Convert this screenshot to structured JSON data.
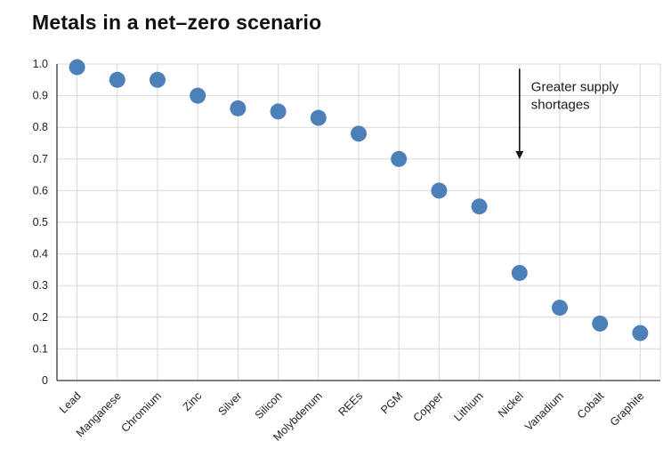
{
  "title": "Metals in a net–zero scenario",
  "chart_data": {
    "type": "scatter",
    "title": "Metals in a net–zero scenario",
    "categories": [
      "Lead",
      "Manganese",
      "Chromium",
      "Zinc",
      "Silver",
      "Silicon",
      "Molybdenum",
      "REEs",
      "PGM",
      "Copper",
      "Lithium",
      "Nickel",
      "Vanadium",
      "Cobalt",
      "Graphite"
    ],
    "values": [
      0.99,
      0.95,
      0.95,
      0.9,
      0.86,
      0.85,
      0.83,
      0.78,
      0.7,
      0.6,
      0.55,
      0.34,
      0.23,
      0.18,
      0.15
    ],
    "xlabel": "",
    "ylabel": "",
    "ylim": [
      0,
      1.0
    ],
    "ytick_step": 0.1,
    "yticks": [
      "0",
      "0.1",
      "0.2",
      "0.3",
      "0.4",
      "0.5",
      "0.6",
      "0.7",
      "0.8",
      "0.9",
      "1.0"
    ],
    "grid": true,
    "legend": "none",
    "annotation": {
      "text_lines": [
        "Greater supply",
        "shortages"
      ],
      "arrow_at_category": "Nickel",
      "arrow_direction": "down"
    },
    "dot_color": "#4d80b8",
    "grid_color": "#d8d8d8",
    "axis_color": "#555555",
    "text_color": "#222222"
  }
}
